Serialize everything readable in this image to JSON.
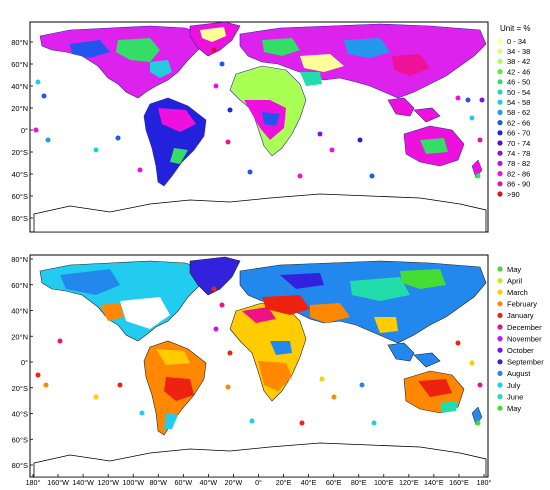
{
  "top_panel": {
    "lat_labels": [
      "80°N",
      "60°N",
      "40°N",
      "20°N",
      "0°",
      "20°S",
      "40°S",
      "60°S",
      "80°S"
    ],
    "legend": {
      "title": "Unit = %",
      "entries": [
        {
          "label": "0 - 34",
          "color": "#ffff99"
        },
        {
          "label": "34 - 38",
          "color": "#ddff77"
        },
        {
          "label": "38 - 42",
          "color": "#aaff55"
        },
        {
          "label": "42 - 46",
          "color": "#55ee33"
        },
        {
          "label": "46 - 50",
          "color": "#33dd66"
        },
        {
          "label": "50 - 54",
          "color": "#22ddaa"
        },
        {
          "label": "54 - 58",
          "color": "#22ccdd"
        },
        {
          "label": "58 - 62",
          "color": "#2299ee"
        },
        {
          "label": "62 - 66",
          "color": "#2255ee"
        },
        {
          "label": "66 - 70",
          "color": "#2222dd"
        },
        {
          "label": "70 - 74",
          "color": "#5511cc"
        },
        {
          "label": "74 - 78",
          "color": "#8811dd"
        },
        {
          "label": "78 - 82",
          "color": "#bb11ee"
        },
        {
          "label": "82 - 86",
          "color": "#ee11dd"
        },
        {
          "label": "86 - 90",
          "color": "#ee1199"
        },
        {
          "label": ">90",
          "color": "#dd1122"
        }
      ]
    }
  },
  "bottom_panel": {
    "lat_labels": [
      "80°N",
      "60°N",
      "40°N",
      "20°N",
      "0°",
      "20°S",
      "40°S",
      "60°S",
      "80°S"
    ],
    "lon_labels": [
      "180°",
      "160°W",
      "140°W",
      "120°W",
      "100°W",
      "80°W",
      "60°W",
      "40°W",
      "20°W",
      "0°",
      "20°E",
      "40°E",
      "60°E",
      "80°E",
      "100°E",
      "120°E",
      "140°E",
      "160°E",
      "180°"
    ],
    "legend": {
      "entries": [
        {
          "label": "May",
          "color": "#44dd33"
        },
        {
          "label": "April",
          "color": "#bbee22"
        },
        {
          "label": "March",
          "color": "#ffcc00"
        },
        {
          "label": "February",
          "color": "#ff8800"
        },
        {
          "label": "January",
          "color": "#ee2211"
        },
        {
          "label": "December",
          "color": "#ee1188"
        },
        {
          "label": "November",
          "color": "#cc11ee"
        },
        {
          "label": "October",
          "color": "#7711ee"
        },
        {
          "label": "September",
          "color": "#3322dd"
        },
        {
          "label": "August",
          "color": "#2288ee"
        },
        {
          "label": "July",
          "color": "#22ccee"
        },
        {
          "label": "June",
          "color": "#22ddaa"
        },
        {
          "label": "May",
          "color": "#44dd33"
        }
      ]
    }
  }
}
